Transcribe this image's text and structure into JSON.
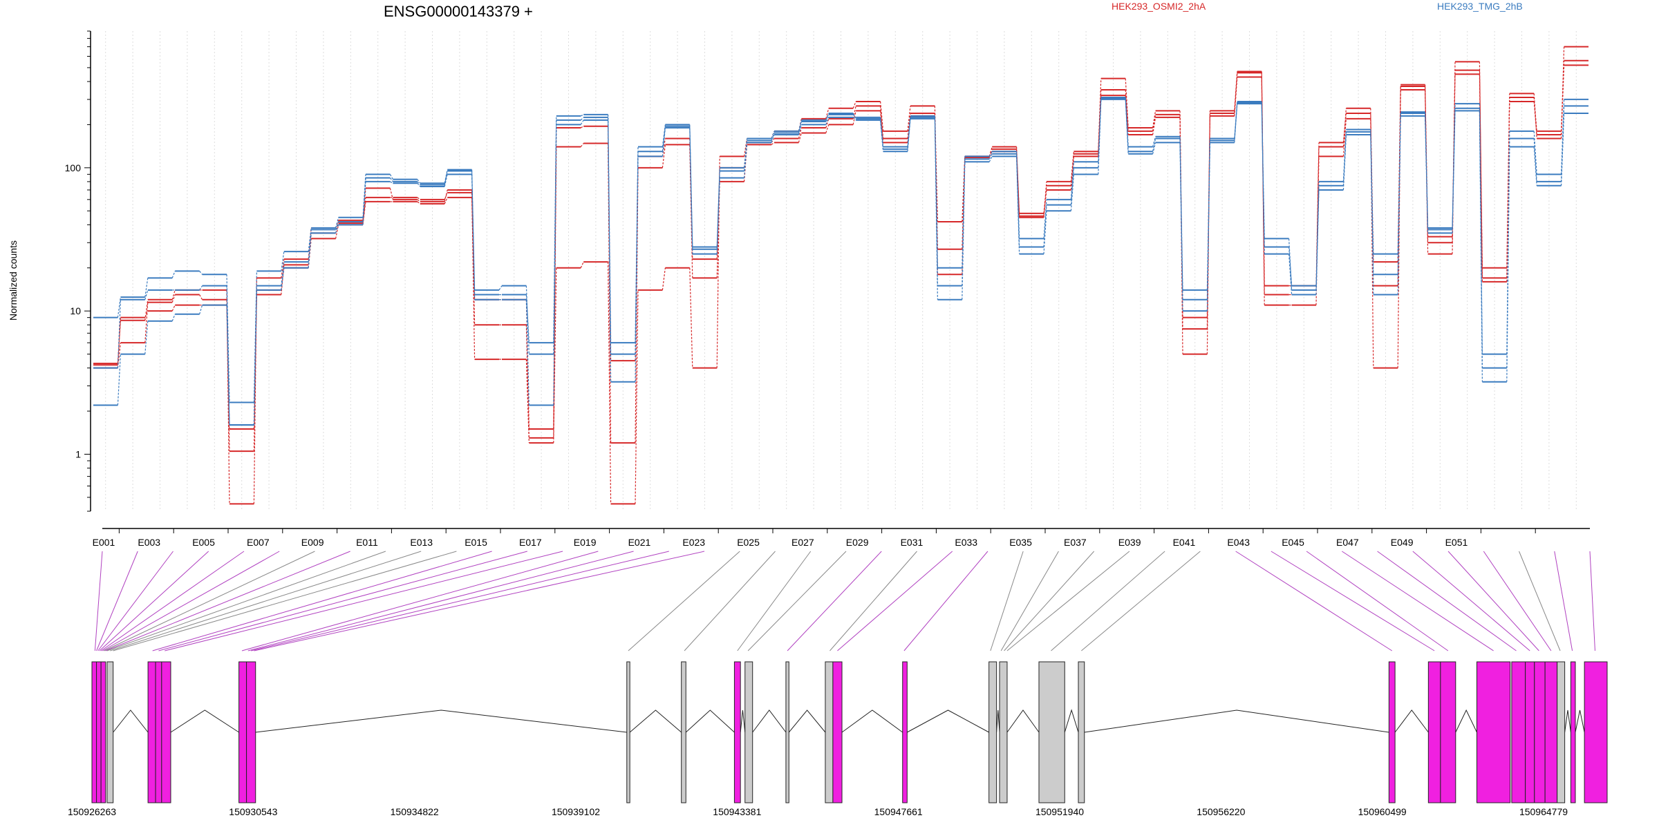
{
  "gene_title": "ENSG00000143379 +",
  "legend": [
    {
      "label": "HEK293_OSMI2_2hA",
      "color": "#d62728"
    },
    {
      "label": "HEK293_TMG_2hB",
      "color": "#3a7bbf"
    }
  ],
  "chart_data": {
    "type": "line",
    "title": "ENSG00000143379 +",
    "ylabel": "Normalized counts",
    "yscale": "log",
    "ylim": [
      0.4,
      900
    ],
    "yticks": [
      1,
      10,
      100
    ],
    "ytick_labels": [
      "1",
      "10",
      "100"
    ],
    "exon_labels_shown": [
      "E001",
      "E003",
      "E005",
      "E007",
      "E009",
      "E011",
      "E013",
      "E015",
      "E017",
      "E019",
      "E021",
      "E023",
      "E025",
      "E027",
      "E029",
      "E031",
      "E033",
      "E035",
      "E037",
      "E039",
      "E041",
      "E043",
      "E045",
      "E047",
      "E049",
      "E051"
    ],
    "series": [
      {
        "name": "HEK293_OSMI2_2hA",
        "color": "#d62728",
        "values": [
          4.2,
          9,
          10,
          11,
          11,
          1.05,
          14,
          20,
          32,
          40,
          58,
          58,
          56,
          62,
          8,
          8,
          1.3,
          140,
          148,
          1.2,
          100,
          145,
          17,
          80,
          145,
          150,
          175,
          200,
          250,
          150,
          230,
          27,
          118,
          130,
          46,
          70,
          120,
          320,
          170,
          225,
          7.5,
          230,
          430,
          13,
          13,
          120,
          220,
          15,
          350,
          30,
          450,
          17,
          290,
          170,
          520
        ]
      },
      {
        "name": "HEK293_OSMI2_2hA",
        "color": "#d62728",
        "values": [
          4,
          6,
          11.5,
          13,
          12,
          1.5,
          13,
          21,
          35,
          41,
          62,
          62,
          60,
          67,
          12,
          12,
          1.5,
          190,
          195,
          4.5,
          120,
          160,
          23,
          100,
          150,
          160,
          190,
          220,
          270,
          160,
          240,
          42,
          120,
          135,
          48,
          75,
          125,
          350,
          180,
          235,
          9,
          240,
          460,
          15,
          15,
          150,
          240,
          22,
          370,
          33,
          480,
          20,
          310,
          180,
          560
        ]
      },
      {
        "name": "HEK293_OSMI2_2hA",
        "color": "#d62728",
        "values": [
          4.3,
          8.6,
          12,
          14,
          14,
          0.45,
          17,
          23,
          38,
          43,
          72,
          60,
          58,
          70,
          4.6,
          4.6,
          1.2,
          20,
          22,
          0.45,
          14,
          20,
          4,
          120,
          160,
          180,
          220,
          260,
          290,
          180,
          270,
          18,
          120,
          140,
          45,
          80,
          130,
          420,
          190,
          250,
          5,
          250,
          470,
          11,
          11,
          140,
          260,
          4,
          380,
          25,
          550,
          16,
          330,
          160,
          700
        ]
      },
      {
        "name": "HEK293_TMG_2hB",
        "color": "#3a7bbf",
        "values": [
          9,
          12.5,
          17,
          19,
          18,
          2.3,
          19,
          26,
          38,
          45,
          90,
          83,
          78,
          97,
          14,
          15,
          5,
          230,
          235,
          5,
          130,
          195,
          27,
          95,
          160,
          180,
          215,
          240,
          220,
          140,
          230,
          15,
          120,
          130,
          32,
          60,
          110,
          310,
          140,
          165,
          14,
          160,
          290,
          32,
          14,
          80,
          185,
          13,
          240,
          38,
          280,
          4,
          180,
          90,
          300
        ]
      },
      {
        "name": "HEK293_TMG_2hB",
        "color": "#3a7bbf",
        "values": [
          2.2,
          5,
          8.5,
          9.5,
          11,
          1.6,
          14,
          20,
          35,
          40,
          80,
          78,
          74,
          90,
          12,
          12,
          2.2,
          200,
          215,
          3.2,
          120,
          190,
          25,
          85,
          150,
          170,
          200,
          225,
          215,
          130,
          220,
          12,
          110,
          120,
          25,
          50,
          90,
          300,
          125,
          150,
          10,
          150,
          280,
          25,
          13,
          70,
          170,
          25,
          230,
          35,
          250,
          3.2,
          140,
          75,
          240
        ]
      },
      {
        "name": "HEK293_TMG_2hB",
        "color": "#3a7bbf",
        "values": [
          4,
          12,
          14,
          14,
          15,
          1.6,
          15,
          22,
          37,
          42,
          85,
          80,
          76,
          95,
          13,
          13,
          6,
          215,
          225,
          6,
          140,
          200,
          28,
          100,
          155,
          175,
          210,
          235,
          225,
          135,
          225,
          20,
          115,
          125,
          28,
          55,
          100,
          305,
          130,
          160,
          12,
          155,
          285,
          28,
          15,
          75,
          178,
          18,
          245,
          37,
          260,
          5,
          160,
          80,
          270
        ]
      }
    ]
  },
  "gene_model": {
    "coordinate_labels": [
      "150926263",
      "150930543",
      "150934822",
      "150939102",
      "150943381",
      "150947661",
      "150951940",
      "150956220",
      "150960499",
      "150964779"
    ],
    "exon_fill_highlight": "#f020e0",
    "exon_fill_normal": "#cccccc"
  }
}
